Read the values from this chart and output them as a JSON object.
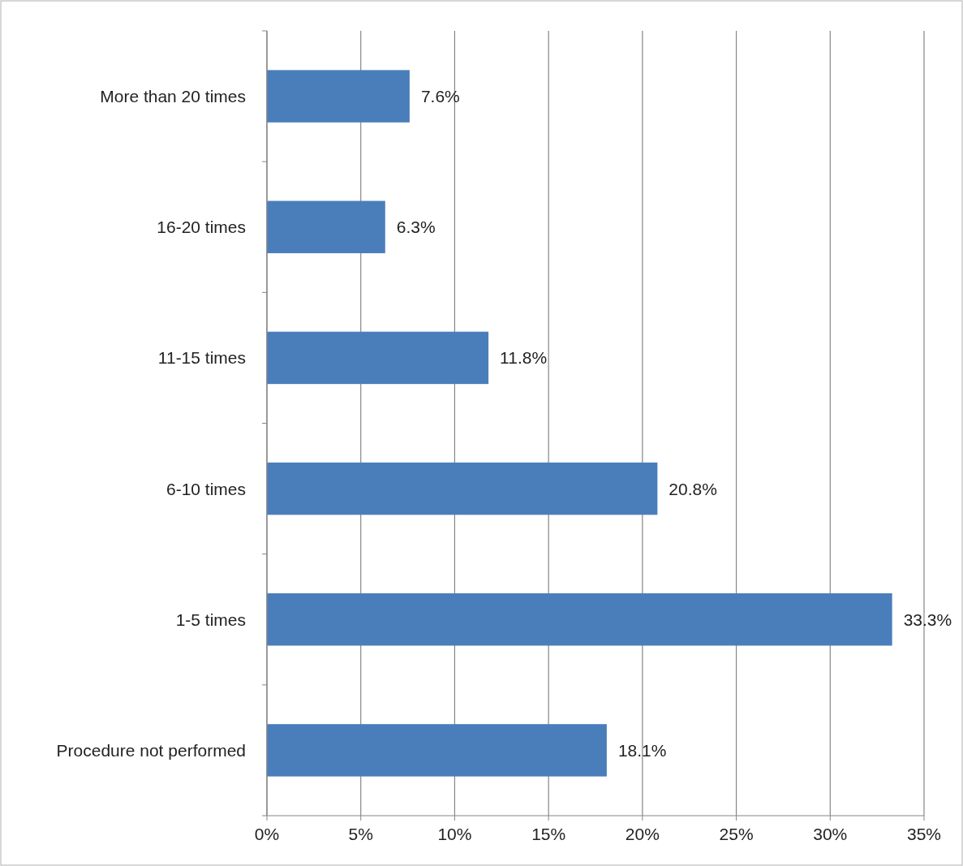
{
  "chart_data": {
    "type": "bar",
    "orientation": "horizontal",
    "categories": [
      "More than 20 times",
      "16-20 times",
      "11-15 times",
      "6-10 times",
      "1-5 times",
      "Procedure not performed"
    ],
    "values": [
      7.6,
      6.3,
      11.8,
      20.8,
      33.3,
      18.1
    ],
    "value_labels": [
      "7.6%",
      "6.3%",
      "11.8%",
      "20.8%",
      "33.3%",
      "18.1%"
    ],
    "color": "#4a7ebb",
    "xlim": [
      0,
      35
    ],
    "xticks": [
      {
        "value": 0,
        "label": "0%"
      },
      {
        "value": 5,
        "label": "5%"
      },
      {
        "value": 10,
        "label": "10%"
      },
      {
        "value": 15,
        "label": "15%"
      },
      {
        "value": 20,
        "label": "20%"
      },
      {
        "value": 25,
        "label": "25%"
      },
      {
        "value": 30,
        "label": "30%"
      },
      {
        "value": 35,
        "label": "35%"
      }
    ],
    "grid": "x"
  }
}
